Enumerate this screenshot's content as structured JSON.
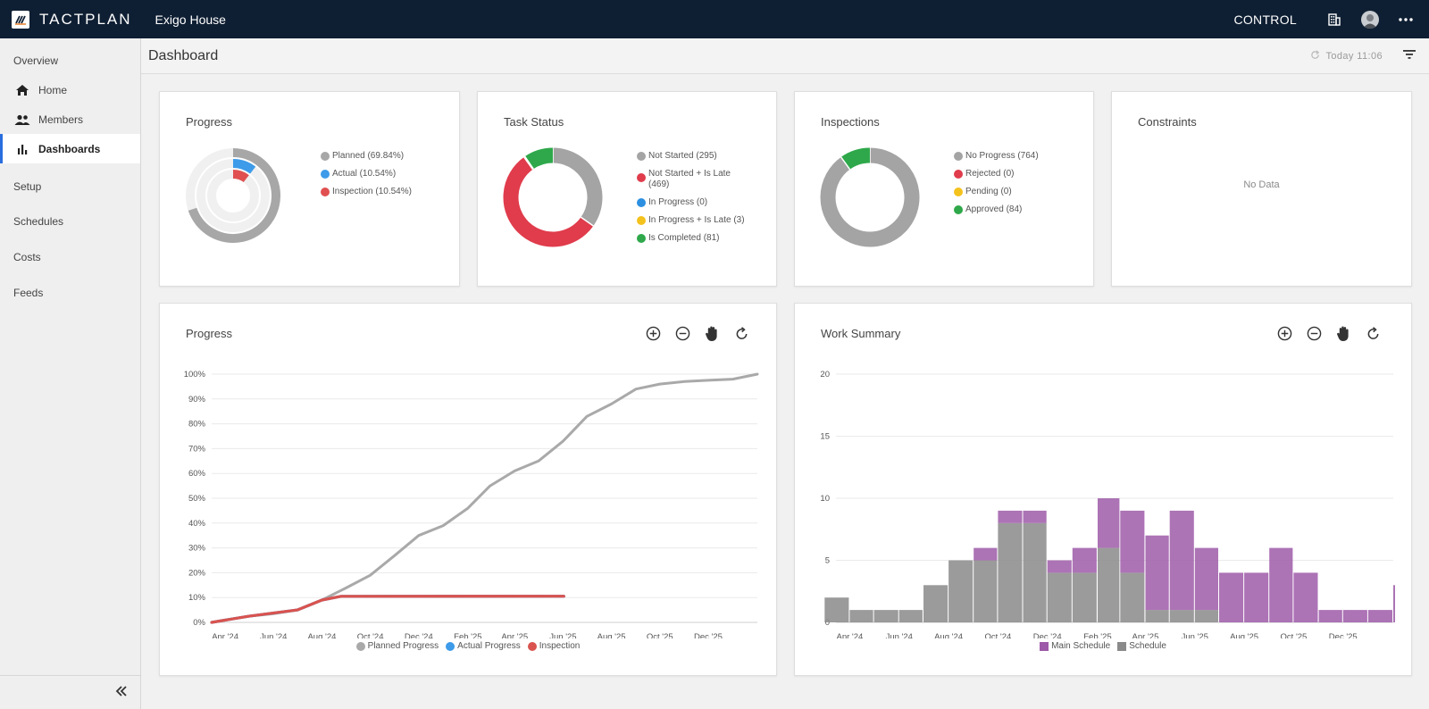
{
  "app": {
    "brand": "TACTPLAN",
    "project": "Exigo House"
  },
  "topbar": {
    "mode_label": "CONTROL",
    "icons": [
      "building-icon",
      "avatar",
      "more-horizontal-icon"
    ]
  },
  "sidebar": {
    "sections": [
      "Overview",
      "Setup",
      "Schedules",
      "Costs",
      "Feeds"
    ],
    "overview_items": [
      {
        "label": "Home",
        "icon": "home-icon"
      },
      {
        "label": "Members",
        "icon": "members-icon"
      },
      {
        "label": "Dashboards",
        "icon": "bar-chart-icon",
        "active": true
      }
    ]
  },
  "header": {
    "title": "Dashboard",
    "timestamp": "Today 11:06"
  },
  "cards": {
    "progress": {
      "title": "Progress",
      "legend": [
        "Planned (69.84%)",
        "Actual (10.54%)",
        "Inspection (10.54%)"
      ],
      "values": [
        69.84,
        10.54,
        10.54
      ],
      "colors": [
        "#a7a7a7",
        "#3d9be9",
        "#e05050"
      ]
    },
    "task_status": {
      "title": "Task Status",
      "legend": [
        "Not Started (295)",
        "Not Started + Is Late (469)",
        "In Progress (0)",
        "In Progress + Is Late (3)",
        "Is Completed (81)"
      ],
      "values": [
        295,
        469,
        0,
        3,
        81
      ],
      "colors": [
        "#a4a4a4",
        "#e03c4c",
        "#2d8fe0",
        "#f4c21c",
        "#2ea84a"
      ]
    },
    "inspections": {
      "title": "Inspections",
      "legend": [
        "No Progress (764)",
        "Rejected (0)",
        "Pending (0)",
        "Approved (84)"
      ],
      "values": [
        764,
        0,
        0,
        84
      ],
      "colors": [
        "#a4a4a4",
        "#e03c4c",
        "#f4c21c",
        "#2ea84a"
      ]
    },
    "constraints": {
      "title": "Constraints",
      "empty_text": "No Data"
    }
  },
  "progress_chart": {
    "title": "Progress",
    "tools": [
      "zoom-in-icon",
      "zoom-out-icon",
      "pan-hand-icon",
      "reset-icon"
    ]
  },
  "work_chart": {
    "title": "Work Summary",
    "tools": [
      "zoom-in-icon",
      "zoom-out-icon",
      "pan-hand-icon",
      "reset-icon"
    ]
  },
  "chart_data": [
    {
      "type": "line",
      "title": "Progress",
      "x_ticks": [
        "Apr '24",
        "Jun '24",
        "Aug '24",
        "Oct '24",
        "Dec '24",
        "Feb '25",
        "Apr '25",
        "Jun '25",
        "Aug '25",
        "Oct '25",
        "Dec '25"
      ],
      "y_ticks": [
        "0%",
        "10%",
        "20%",
        "30%",
        "40%",
        "50%",
        "60%",
        "70%",
        "80%",
        "90%",
        "100%"
      ],
      "ylim": [
        0,
        100
      ],
      "legend_position": "bottom",
      "series": [
        {
          "name": "Planned Progress",
          "color": "#a9a9a9",
          "x": [
            "2024-03-15",
            "2024-04-01",
            "2024-05-01",
            "2024-06-01",
            "2024-07-01",
            "2024-08-01",
            "2024-09-01",
            "2024-10-01",
            "2024-11-01",
            "2024-12-01",
            "2025-01-01",
            "2025-02-01",
            "2025-03-01",
            "2025-04-01",
            "2025-05-01",
            "2025-06-01",
            "2025-07-01",
            "2025-08-01",
            "2025-09-01",
            "2025-10-01",
            "2025-11-01",
            "2025-12-01",
            "2026-01-01",
            "2026-02-01"
          ],
          "values": [
            0,
            1,
            2.5,
            3.5,
            5,
            9,
            14,
            19,
            27,
            35,
            39,
            46,
            55,
            61,
            65,
            73,
            83,
            88,
            94,
            96,
            97,
            97.5,
            98,
            100
          ]
        },
        {
          "name": "Actual Progress",
          "color": "#3d9be9",
          "x": [
            "2024-03-15",
            "2024-05-01",
            "2024-07-01",
            "2024-08-01",
            "2024-08-25",
            "2025-06-02"
          ],
          "values": [
            0,
            2.5,
            5,
            9,
            10.5,
            10.54
          ]
        },
        {
          "name": "Inspection",
          "color": "#d9534f",
          "x": [
            "2024-03-15",
            "2024-05-01",
            "2024-07-01",
            "2024-08-01",
            "2024-08-25",
            "2025-06-02"
          ],
          "values": [
            0,
            2.5,
            5,
            9,
            10.5,
            10.54
          ]
        }
      ]
    },
    {
      "type": "bar",
      "title": "Work Summary",
      "x_ticks": [
        "Apr '24",
        "Jun '24",
        "Aug '24",
        "Oct '24",
        "Dec '24",
        "Feb '25",
        "Apr '25",
        "Jun '25",
        "Aug '25",
        "Oct '25",
        "Dec '25"
      ],
      "y_ticks": [
        "0",
        "5",
        "10",
        "15",
        "20"
      ],
      "ylim": [
        0,
        20
      ],
      "legend_position": "bottom",
      "categories": [
        "2024-03",
        "2024-04",
        "2024-05",
        "2024-06",
        "2024-07",
        "2024-08",
        "2024-09",
        "2024-10",
        "2024-11",
        "2024-12",
        "2025-01",
        "2025-02",
        "2025-03",
        "2025-04",
        "2025-05",
        "2025-06",
        "2025-07",
        "2025-08",
        "2025-09",
        "2025-10",
        "2025-11",
        "2025-12",
        "2026-01",
        "2026-02"
      ],
      "series": [
        {
          "name": "Main Schedule",
          "color": "#9d5aa8",
          "values": [
            0,
            0,
            0,
            0,
            0,
            0,
            1,
            1,
            1,
            1,
            2,
            4,
            5,
            6,
            8,
            5,
            4,
            4,
            6,
            4,
            1,
            1,
            1,
            3
          ]
        },
        {
          "name": "Schedule",
          "color": "#8a8a8a",
          "values": [
            2,
            1,
            1,
            1,
            3,
            5,
            5,
            8,
            8,
            4,
            4,
            6,
            4,
            1,
            1,
            1,
            0,
            0,
            0,
            0,
            0,
            0,
            0,
            0
          ]
        }
      ]
    }
  ]
}
